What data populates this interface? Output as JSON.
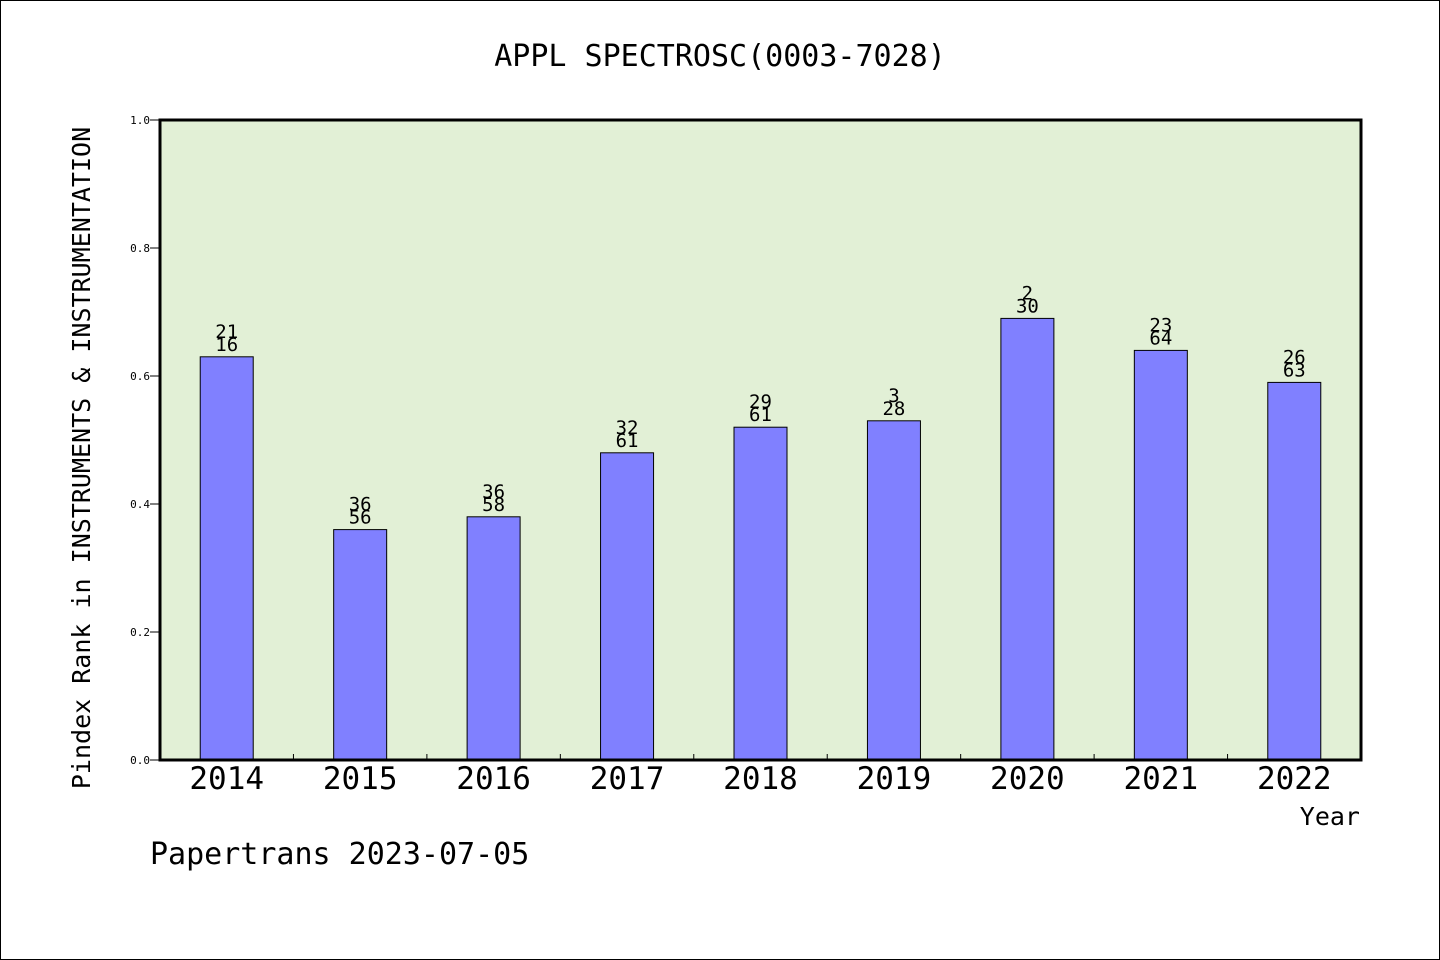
{
  "chart_data": {
    "type": "bar",
    "title": "APPL SPECTROSC(0003-7028)",
    "xlabel": "Year",
    "ylabel": "Pindex Rank in INSTRUMENTS & INSTRUMENTATION",
    "footer": "Papertrans 2023-07-05",
    "ylim": [
      0,
      1.0
    ],
    "yticks": [
      "0.0",
      "0.2",
      "0.4",
      "0.6",
      "0.8",
      "1.0"
    ],
    "categories": [
      "2014",
      "2015",
      "2016",
      "2017",
      "2018",
      "2019",
      "2020",
      "2021",
      "2022"
    ],
    "values": [
      0.63,
      0.36,
      0.38,
      0.48,
      0.52,
      0.53,
      0.69,
      0.64,
      0.59
    ],
    "labels_top": [
      "21",
      "36",
      "36",
      "32",
      "29",
      "3",
      "2",
      "23",
      "26"
    ],
    "labels_bottom": [
      "16",
      "56",
      "58",
      "61",
      "61",
      "28",
      "30",
      "64",
      "63"
    ],
    "grid": false,
    "colors": {
      "bar": "#8080ff",
      "plot_bg": "#e2f0d6"
    }
  }
}
